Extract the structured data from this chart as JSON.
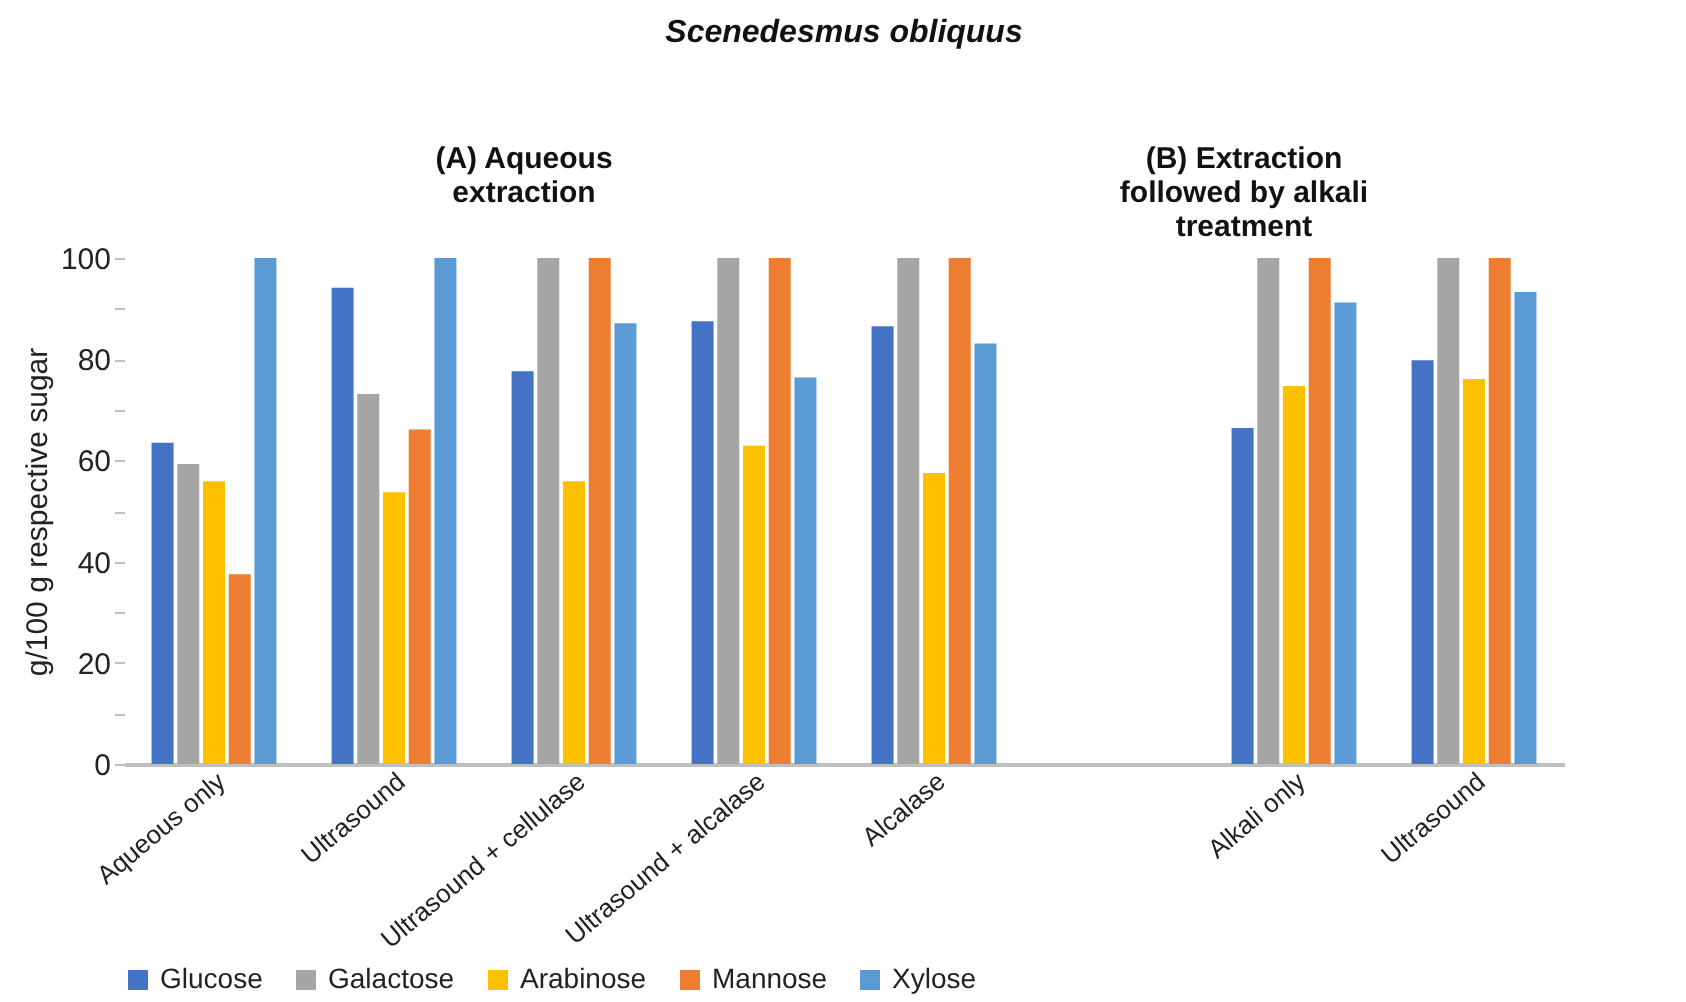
{
  "chart_data": {
    "type": "bar",
    "title": "Scenedesmus obliquus",
    "ylabel": "g/100 g respective sugar",
    "annotations": [
      "(A)  Aqueous extraction",
      "(B) Extraction followed by alkali treatment"
    ],
    "categories": [
      "Aqueous only",
      "Ultrasound",
      "Ultrasound + cellulase",
      "Ultrasound + alcalase",
      "Alcalase",
      null,
      "Alkali only",
      "Ultrasound"
    ],
    "series": [
      {
        "name": "Glucose",
        "color": "#4472c4",
        "values": [
          63.5,
          94.1,
          77.6,
          87.5,
          86.5,
          null,
          66.4,
          79.8
        ]
      },
      {
        "name": "Galactose",
        "color": "#a5a5a5",
        "values": [
          59.3,
          73.1,
          100,
          100,
          100,
          null,
          100,
          100
        ]
      },
      {
        "name": "Arabinose",
        "color": "#ffc000",
        "values": [
          55.9,
          53.7,
          55.9,
          62.9,
          57.5,
          null,
          74.7,
          76.1
        ]
      },
      {
        "name": "Mannose",
        "color": "#ed7d31",
        "values": [
          37.5,
          66.1,
          100,
          100,
          100,
          null,
          100,
          100
        ]
      },
      {
        "name": "Xylose",
        "color": "#5b9bd5",
        "values": [
          100,
          100,
          87.1,
          76.4,
          83.1,
          null,
          91.2,
          93.3
        ]
      }
    ],
    "ylim": [
      0,
      100
    ],
    "yticks": [
      0,
      {
        "value": 10,
        "label": null
      },
      20,
      {
        "value": 30,
        "label": null
      },
      40,
      {
        "value": 50,
        "label": null
      },
      60,
      {
        "value": 70,
        "label": null
      },
      80,
      {
        "value": 90,
        "label": null
      },
      100
    ],
    "legend": "bottom"
  }
}
